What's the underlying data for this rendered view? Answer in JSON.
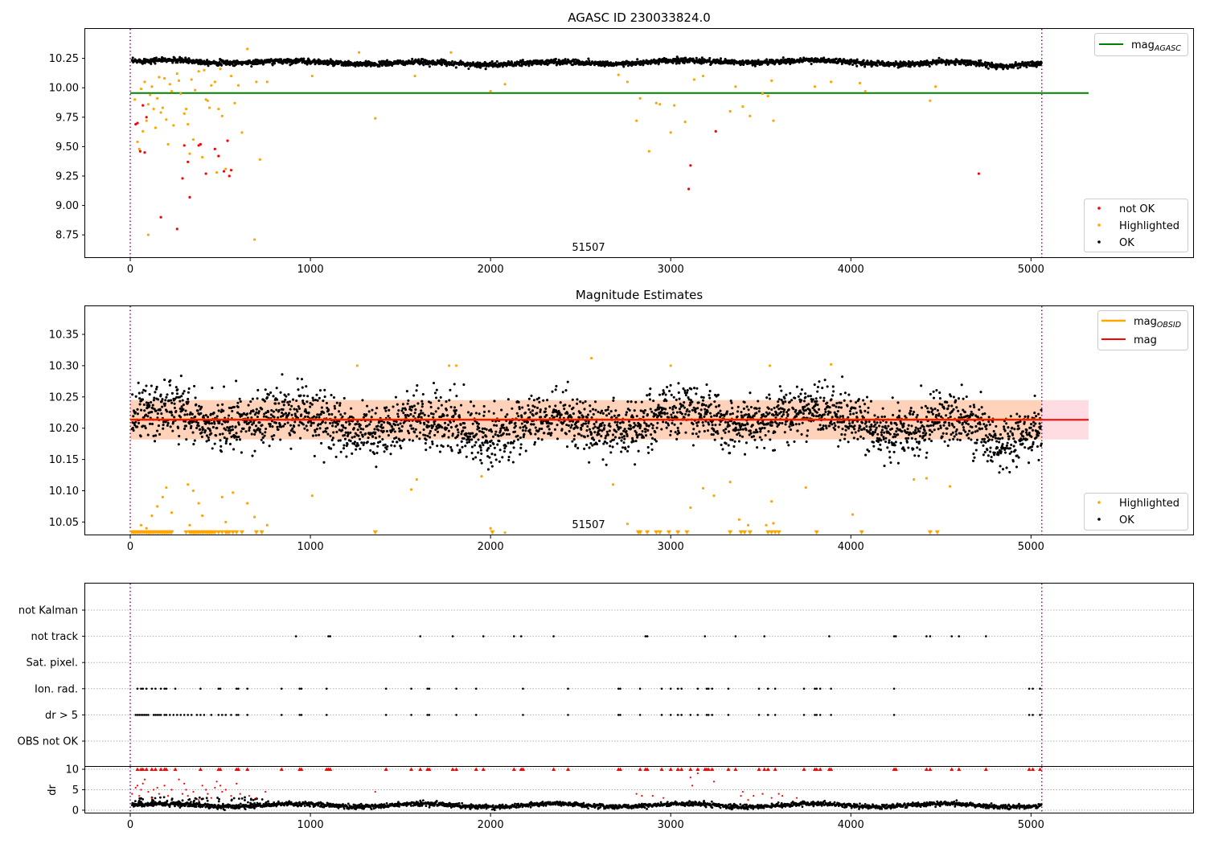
{
  "chart_data": [
    {
      "type": "scatter",
      "title": "AGASC ID 230033824.0",
      "xlim": [
        -250,
        5900
      ],
      "ylim": [
        8.56,
        10.5
      ],
      "xticks": [
        0,
        1000,
        2000,
        3000,
        4000,
        5000
      ],
      "yticks": [
        8.75,
        9.0,
        9.25,
        9.5,
        9.75,
        10.0,
        10.25
      ],
      "ytick_labels": [
        "8.75",
        "9.00",
        "9.25",
        "9.50",
        "9.75",
        "10.00",
        "10.25"
      ],
      "obsid_label": "51507",
      "obsid_label_x": 2530,
      "vlines_x": [
        0,
        5060
      ],
      "hline": {
        "name": "mag_AGASC",
        "label_main": "mag",
        "label_sub": "AGASC",
        "y": 9.955,
        "x_end": 5320,
        "color": "#008000"
      },
      "series": [
        {
          "name": "not OK",
          "color": "#ff0000",
          "x": [
            30,
            40,
            55,
            70,
            80,
            90,
            170,
            260,
            290,
            300,
            320,
            330,
            380,
            390,
            420,
            470,
            490,
            520,
            540,
            550,
            560,
            3100,
            3110,
            3250,
            4710
          ],
          "y": [
            9.69,
            9.7,
            9.46,
            9.85,
            9.45,
            9.75,
            8.9,
            8.8,
            9.23,
            9.51,
            9.37,
            9.07,
            9.51,
            9.52,
            9.27,
            9.48,
            9.42,
            9.29,
            9.55,
            9.25,
            9.3,
            9.14,
            9.34,
            9.63,
            9.27
          ]
        },
        {
          "name": "Highlighted",
          "color": "#ffa500",
          "x": [
            25,
            40,
            50,
            60,
            70,
            80,
            90,
            100,
            110,
            120,
            130,
            140,
            150,
            160,
            170,
            180,
            190,
            200,
            210,
            220,
            230,
            240,
            260,
            270,
            280,
            300,
            310,
            320,
            330,
            340,
            350,
            360,
            380,
            400,
            410,
            420,
            430,
            440,
            450,
            470,
            480,
            490,
            500,
            510,
            530,
            560,
            580,
            600,
            620,
            650,
            700,
            720,
            760,
            1010,
            1360,
            1580,
            2000,
            2080,
            2710,
            2760,
            2810,
            2830,
            2880,
            2920,
            2940,
            3000,
            3020,
            3080,
            3130,
            3180,
            3330,
            3360,
            3400,
            3440,
            3510,
            3540,
            3560,
            3570,
            3800,
            3890,
            4050,
            4080,
            4440,
            4470,
            690,
            100,
            1270,
            1780
          ],
          "y": [
            9.9,
            9.54,
            9.48,
            9.99,
            9.63,
            10.05,
            9.72,
            9.86,
            9.94,
            10.01,
            9.82,
            9.66,
            9.91,
            10.09,
            9.79,
            9.83,
            10.08,
            9.73,
            9.52,
            10.03,
            9.97,
            9.68,
            10.12,
            10.06,
            9.95,
            9.78,
            9.82,
            9.69,
            9.44,
            10.07,
            9.56,
            9.98,
            10.14,
            9.41,
            10.15,
            9.9,
            9.89,
            9.83,
            10.02,
            10.05,
            9.28,
            9.82,
            10.16,
            9.76,
            9.31,
            10.1,
            9.87,
            10.02,
            9.62,
            10.33,
            10.05,
            9.39,
            10.05,
            10.1,
            9.74,
            10.1,
            9.97,
            10.03,
            10.11,
            10.05,
            9.72,
            9.91,
            9.46,
            9.87,
            9.86,
            9.62,
            9.85,
            9.71,
            10.07,
            10.1,
            9.8,
            10.01,
            9.84,
            9.76,
            9.95,
            9.93,
            10.06,
            9.72,
            10.01,
            10.05,
            10.04,
            9.97,
            9.89,
            10.01,
            8.71,
            8.75,
            10.3,
            10.3
          ]
        },
        {
          "name": "OK",
          "color": "#000000",
          "trend_center": 10.215,
          "noise": 0.02
        }
      ],
      "legend_main": {
        "items": [
          "mag_AGASC"
        ],
        "position": "upper right"
      },
      "legend_points": {
        "items": [
          "not OK",
          "Highlighted",
          "OK"
        ],
        "position": "lower right"
      }
    },
    {
      "type": "scatter",
      "title": "Magnitude Estimates",
      "xlim": [
        -250,
        5900
      ],
      "ylim": [
        10.03,
        10.395
      ],
      "xticks": [
        0,
        1000,
        2000,
        3000,
        4000,
        5000
      ],
      "yticks": [
        10.05,
        10.1,
        10.15,
        10.2,
        10.25,
        10.3,
        10.35
      ],
      "ytick_labels": [
        "10.05",
        "10.10",
        "10.15",
        "10.20",
        "10.25",
        "10.30",
        "10.35"
      ],
      "obsid_label": "51507",
      "obsid_label_x": 2530,
      "vlines_x": [
        0,
        5060
      ],
      "mag_line": {
        "name": "mag",
        "y": 10.2135,
        "x_end": 5320,
        "color": "#ff0000"
      },
      "mag_band": {
        "low": 10.182,
        "high": 10.245,
        "color": "#ffc0cb"
      },
      "mag_obsid": {
        "name": "mag_OBSID",
        "label_main": "mag",
        "label_sub": "OBSID",
        "y": 10.214,
        "low": 10.182,
        "high": 10.245,
        "x_end": 5060,
        "color": "#ffa500"
      },
      "series": [
        {
          "name": "Highlighted",
          "color": "#ffa500",
          "x": [
            60,
            90,
            120,
            150,
            180,
            200,
            230,
            320,
            330,
            350,
            380,
            400,
            510,
            530,
            570,
            650,
            690,
            760,
            1010,
            1260,
            1560,
            1590,
            1770,
            1810,
            1950,
            2000,
            2080,
            2560,
            2680,
            2760,
            3000,
            3110,
            3180,
            3240,
            3330,
            3380,
            3430,
            3550,
            3560,
            3570,
            3750,
            3890,
            4010,
            4350,
            4420,
            4550,
            3530
          ],
          "y": [
            10.045,
            10.04,
            10.06,
            10.075,
            10.09,
            10.105,
            10.065,
            10.11,
            10.045,
            10.1,
            10.08,
            10.06,
            10.09,
            10.05,
            10.097,
            10.08,
            10.058,
            10.045,
            10.092,
            10.3,
            10.102,
            10.118,
            10.3,
            10.3,
            10.123,
            10.04,
            10.033,
            10.312,
            10.11,
            10.047,
            10.3,
            10.073,
            10.104,
            10.092,
            10.114,
            10.054,
            10.045,
            10.3,
            10.083,
            10.048,
            10.105,
            10.302,
            10.062,
            10.118,
            10.12,
            10.107,
            10.045
          ]
        },
        {
          "name": "OK",
          "color": "#000000",
          "trend_center": 10.21,
          "noise": 0.026
        }
      ],
      "lower_markers_x": [
        10,
        20,
        30,
        40,
        50,
        60,
        70,
        80,
        90,
        100,
        110,
        120,
        130,
        140,
        150,
        160,
        170,
        180,
        190,
        200,
        210,
        220,
        230,
        310,
        330,
        340,
        350,
        360,
        370,
        380,
        390,
        400,
        410,
        420,
        430,
        440,
        450,
        460,
        470,
        490,
        510,
        530,
        540,
        550,
        570,
        590,
        620,
        700,
        730,
        1360,
        2010,
        2820,
        2830,
        2870,
        2920,
        2940,
        2990,
        3040,
        3090,
        3330,
        3390,
        3410,
        3440,
        3540,
        3560,
        3580,
        3600,
        3810,
        4060,
        4440,
        4480
      ],
      "lower_markers_y": 10.0335,
      "legend_main": {
        "items": [
          "mag_OBSID",
          "mag"
        ],
        "position": "upper right"
      },
      "legend_points": {
        "items": [
          "Highlighted",
          "OK"
        ],
        "position": "lower right"
      }
    },
    {
      "type": "scatter",
      "title": "",
      "xlim": [
        -250,
        5900
      ],
      "categories": [
        "not Kalman",
        "not track",
        "Sat. pixel.",
        "Ion. rad.",
        "dr > 5",
        "OBS not OK"
      ],
      "vlines_x": [
        0,
        5060
      ],
      "flag_rows": {
        "not track": [
          920,
          1100,
          1110,
          1610,
          1790,
          1960,
          2130,
          2170,
          2350,
          2860,
          2870,
          3190,
          3360,
          3520,
          3880,
          4240,
          4250,
          4420,
          4440,
          4560,
          4600,
          4750
        ],
        "Ion. rad.": [
          40,
          60,
          70,
          90,
          120,
          140,
          170,
          190,
          200,
          250,
          390,
          490,
          500,
          590,
          600,
          650,
          840,
          940,
          950,
          1090,
          1420,
          1560,
          1650,
          1660,
          1810,
          1920,
          2180,
          2430,
          2710,
          2720,
          2830,
          2950,
          3000,
          3040,
          3060,
          3150,
          3200,
          3210,
          3230,
          3320,
          3490,
          3540,
          3580,
          3740,
          3800,
          3810,
          3830,
          3890,
          4240,
          4990,
          5010,
          5050
        ],
        "dr > 5": [
          30,
          40,
          50,
          60,
          70,
          80,
          90,
          100,
          130,
          140,
          150,
          160,
          170,
          190,
          200,
          220,
          240,
          260,
          280,
          300,
          320,
          340,
          370,
          390,
          410,
          450,
          490,
          510,
          530,
          560,
          590,
          600,
          650,
          840,
          940,
          950,
          1090,
          1420,
          1560,
          1650,
          1660,
          1810,
          1920,
          2180,
          2430,
          2710,
          2720,
          2830,
          2950,
          3000,
          3040,
          3060,
          3110,
          3150,
          3200,
          3210,
          3230,
          3320,
          3490,
          3540,
          3580,
          3740,
          3800,
          3810,
          3830,
          3890,
          4240,
          4990,
          5010,
          5050
        ]
      }
    },
    {
      "type": "scatter",
      "title": "",
      "ylabel": "dr",
      "xlim": [
        -250,
        5900
      ],
      "ylim": [
        -0.6,
        10.6
      ],
      "xticks": [
        0,
        1000,
        2000,
        3000,
        4000,
        5000
      ],
      "yticks": [
        0,
        5,
        10
      ],
      "ytick_labels": [
        "0",
        "5",
        "10"
      ],
      "vlines_x": [
        0,
        5060
      ],
      "red_high_x": [
        40,
        60,
        70,
        90,
        120,
        140,
        170,
        190,
        200,
        250,
        390,
        490,
        500,
        590,
        600,
        650,
        840,
        940,
        950,
        1090,
        1100,
        1110,
        1420,
        1560,
        1610,
        1650,
        1660,
        1790,
        1810,
        1920,
        1960,
        2130,
        2170,
        2180,
        2350,
        2430,
        2710,
        2720,
        2830,
        2860,
        2870,
        2950,
        3000,
        3040,
        3060,
        3110,
        3150,
        3190,
        3200,
        3210,
        3230,
        3320,
        3360,
        3490,
        3520,
        3540,
        3580,
        3740,
        3800,
        3810,
        3830,
        3880,
        3890,
        4240,
        4250,
        4420,
        4440,
        4560,
        4600,
        4750,
        4990,
        5010,
        5050
      ],
      "red_mid": {
        "x": [
          10,
          30,
          40,
          50,
          60,
          70,
          80,
          100,
          120,
          130,
          150,
          160,
          190,
          210,
          230,
          270,
          290,
          300,
          310,
          320,
          350,
          380,
          400,
          420,
          430,
          450,
          470,
          480,
          500,
          510,
          530,
          560,
          590,
          610,
          660,
          700,
          750,
          1360,
          2810,
          2840,
          2900,
          2960,
          3110,
          3120,
          3150,
          3240,
          3390,
          3400,
          3430,
          3460,
          3510,
          3560,
          3600,
          3620,
          3700
        ],
        "y": [
          4,
          5.5,
          6,
          3.5,
          5,
          6.5,
          7.5,
          4.5,
          3,
          5,
          5.5,
          4,
          6,
          3.5,
          5,
          7.5,
          4,
          6.5,
          5,
          3.5,
          4.5,
          2.5,
          6,
          5,
          4,
          3,
          5.5,
          7,
          6,
          4.5,
          5,
          3.5,
          6.5,
          4,
          3.5,
          3,
          4.5,
          4.5,
          4,
          3.5,
          3.5,
          3,
          8,
          6,
          9,
          7,
          3.5,
          4.5,
          2.5,
          3.5,
          4,
          3,
          4,
          3.5,
          3
        ]
      },
      "black_points": {
        "name": "dr",
        "color": "#000000",
        "center": 1.2,
        "noise": 0.45,
        "extra_count": 90
      }
    }
  ]
}
